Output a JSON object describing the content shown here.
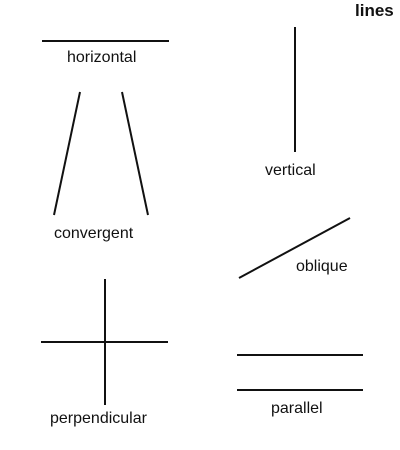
{
  "title": "lines",
  "labels": {
    "horizontal": "horizontal",
    "vertical": "vertical",
    "convergent": "convergent",
    "oblique": "oblique",
    "perpendicular": "perpendicular",
    "parallel": "parallel"
  },
  "colors": {
    "ink": "#111111",
    "background": "#ffffff"
  }
}
